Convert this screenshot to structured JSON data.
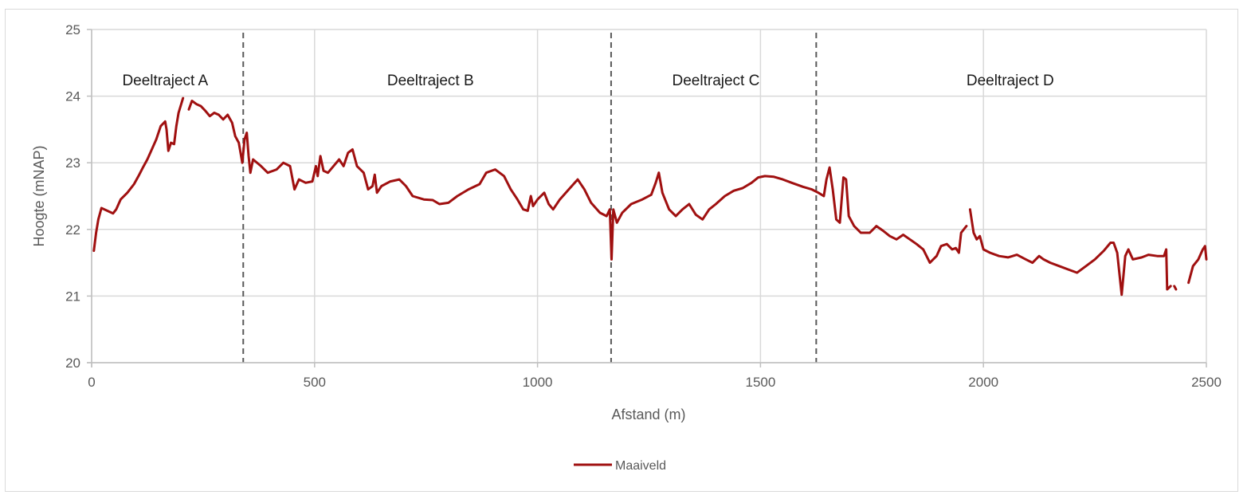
{
  "chart_data": {
    "type": "line",
    "title": "",
    "xlabel": "Afstand (m)",
    "ylabel": "Hoogte (mNAP)",
    "xlim": [
      0,
      2500
    ],
    "ylim": [
      20,
      25
    ],
    "x_ticks": [
      0,
      500,
      1000,
      1500,
      2000,
      2500
    ],
    "y_ticks": [
      20,
      21,
      22,
      23,
      24,
      25
    ],
    "grid": true,
    "legend_position": "bottom",
    "line_color": "#a01010",
    "section_dividers_m": [
      340,
      1165,
      1625
    ],
    "sections": [
      {
        "label": "Deeltraject A",
        "x_center": 165
      },
      {
        "label": "Deeltraject B",
        "x_center": 760
      },
      {
        "label": "Deeltraject C",
        "x_center": 1400
      },
      {
        "label": "Deeltraject D",
        "x_center": 2060
      }
    ],
    "series": [
      {
        "name": "Maaiveld",
        "segments": [
          [
            [
              5,
              21.68
            ],
            [
              10,
              21.95
            ],
            [
              15,
              22.15
            ],
            [
              22,
              22.32
            ],
            [
              35,
              22.28
            ],
            [
              48,
              22.24
            ],
            [
              55,
              22.3
            ],
            [
              65,
              22.45
            ],
            [
              80,
              22.55
            ],
            [
              95,
              22.68
            ],
            [
              105,
              22.8
            ],
            [
              115,
              22.93
            ],
            [
              125,
              23.05
            ],
            [
              135,
              23.2
            ],
            [
              145,
              23.35
            ],
            [
              155,
              23.55
            ],
            [
              165,
              23.62
            ],
            [
              168,
              23.5
            ],
            [
              172,
              23.18
            ],
            [
              178,
              23.3
            ],
            [
              185,
              23.28
            ],
            [
              190,
              23.55
            ],
            [
              195,
              23.75
            ],
            [
              205,
              23.97
            ]
          ],
          [
            [
              218,
              23.8
            ],
            [
              225,
              23.93
            ],
            [
              235,
              23.88
            ],
            [
              245,
              23.85
            ],
            [
              255,
              23.78
            ],
            [
              265,
              23.7
            ],
            [
              275,
              23.75
            ],
            [
              285,
              23.72
            ],
            [
              295,
              23.65
            ],
            [
              305,
              23.72
            ],
            [
              315,
              23.6
            ],
            [
              322,
              23.4
            ],
            [
              330,
              23.3
            ],
            [
              338,
              23.0
            ],
            [
              343,
              23.35
            ],
            [
              348,
              23.45
            ],
            [
              352,
              23.1
            ],
            [
              356,
              22.85
            ],
            [
              362,
              23.05
            ],
            [
              380,
              22.95
            ],
            [
              395,
              22.85
            ],
            [
              415,
              22.9
            ],
            [
              430,
              23.0
            ],
            [
              445,
              22.95
            ],
            [
              455,
              22.6
            ],
            [
              465,
              22.75
            ],
            [
              480,
              22.7
            ],
            [
              495,
              22.72
            ],
            [
              503,
              22.95
            ],
            [
              507,
              22.8
            ],
            [
              513,
              23.1
            ],
            [
              520,
              22.88
            ],
            [
              530,
              22.85
            ],
            [
              545,
              22.97
            ],
            [
              555,
              23.05
            ],
            [
              565,
              22.95
            ],
            [
              575,
              23.15
            ],
            [
              585,
              23.2
            ],
            [
              595,
              22.95
            ],
            [
              610,
              22.85
            ],
            [
              620,
              22.6
            ],
            [
              630,
              22.65
            ],
            [
              635,
              22.82
            ],
            [
              640,
              22.55
            ],
            [
              650,
              22.65
            ],
            [
              670,
              22.72
            ],
            [
              690,
              22.75
            ],
            [
              705,
              22.65
            ],
            [
              720,
              22.5
            ],
            [
              745,
              22.45
            ],
            [
              765,
              22.44
            ],
            [
              780,
              22.38
            ],
            [
              800,
              22.4
            ],
            [
              820,
              22.5
            ],
            [
              845,
              22.6
            ],
            [
              870,
              22.68
            ],
            [
              885,
              22.85
            ],
            [
              905,
              22.9
            ],
            [
              925,
              22.8
            ],
            [
              940,
              22.6
            ],
            [
              955,
              22.45
            ],
            [
              968,
              22.3
            ],
            [
              978,
              22.28
            ],
            [
              985,
              22.5
            ],
            [
              990,
              22.35
            ],
            [
              1000,
              22.45
            ],
            [
              1015,
              22.55
            ],
            [
              1025,
              22.38
            ],
            [
              1035,
              22.3
            ],
            [
              1050,
              22.45
            ],
            [
              1070,
              22.6
            ],
            [
              1090,
              22.75
            ],
            [
              1105,
              22.6
            ],
            [
              1120,
              22.4
            ],
            [
              1140,
              22.25
            ],
            [
              1155,
              22.2
            ],
            [
              1162,
              22.3
            ],
            [
              1166,
              21.55
            ],
            [
              1170,
              22.3
            ],
            [
              1178,
              22.1
            ],
            [
              1190,
              22.25
            ],
            [
              1210,
              22.38
            ],
            [
              1235,
              22.45
            ],
            [
              1255,
              22.52
            ],
            [
              1265,
              22.7
            ],
            [
              1272,
              22.85
            ],
            [
              1280,
              22.55
            ],
            [
              1295,
              22.3
            ],
            [
              1310,
              22.2
            ],
            [
              1325,
              22.3
            ],
            [
              1340,
              22.38
            ],
            [
              1355,
              22.22
            ],
            [
              1370,
              22.15
            ],
            [
              1385,
              22.3
            ],
            [
              1400,
              22.38
            ],
            [
              1420,
              22.5
            ],
            [
              1440,
              22.58
            ],
            [
              1460,
              22.62
            ],
            [
              1480,
              22.7
            ],
            [
              1495,
              22.78
            ],
            [
              1510,
              22.8
            ],
            [
              1530,
              22.79
            ],
            [
              1550,
              22.75
            ],
            [
              1570,
              22.7
            ],
            [
              1595,
              22.64
            ],
            [
              1615,
              22.6
            ],
            [
              1630,
              22.55
            ],
            [
              1642,
              22.5
            ],
            [
              1648,
              22.75
            ],
            [
              1655,
              22.93
            ],
            [
              1662,
              22.6
            ],
            [
              1670,
              22.15
            ],
            [
              1678,
              22.1
            ],
            [
              1686,
              22.78
            ],
            [
              1692,
              22.75
            ],
            [
              1698,
              22.2
            ],
            [
              1710,
              22.05
            ],
            [
              1725,
              21.95
            ],
            [
              1745,
              21.95
            ],
            [
              1760,
              22.05
            ],
            [
              1775,
              21.98
            ],
            [
              1790,
              21.9
            ],
            [
              1805,
              21.85
            ],
            [
              1820,
              21.92
            ],
            [
              1835,
              21.85
            ],
            [
              1850,
              21.78
            ],
            [
              1865,
              21.7
            ],
            [
              1880,
              21.5
            ],
            [
              1895,
              21.6
            ],
            [
              1905,
              21.75
            ],
            [
              1918,
              21.78
            ],
            [
              1930,
              21.7
            ],
            [
              1938,
              21.72
            ],
            [
              1945,
              21.65
            ],
            [
              1950,
              21.95
            ],
            [
              1962,
              22.05
            ]
          ],
          [
            [
              1970,
              22.3
            ],
            [
              1978,
              21.95
            ],
            [
              1985,
              21.85
            ],
            [
              1992,
              21.9
            ],
            [
              2000,
              21.7
            ],
            [
              2015,
              21.65
            ],
            [
              2035,
              21.6
            ],
            [
              2055,
              21.58
            ],
            [
              2075,
              21.62
            ],
            [
              2095,
              21.55
            ],
            [
              2110,
              21.5
            ],
            [
              2125,
              21.6
            ],
            [
              2135,
              21.55
            ],
            [
              2150,
              21.5
            ],
            [
              2170,
              21.45
            ],
            [
              2190,
              21.4
            ],
            [
              2210,
              21.35
            ],
            [
              2230,
              21.45
            ],
            [
              2250,
              21.55
            ],
            [
              2270,
              21.68
            ],
            [
              2285,
              21.8
            ],
            [
              2292,
              21.8
            ],
            [
              2300,
              21.65
            ],
            [
              2310,
              21.02
            ],
            [
              2318,
              21.6
            ],
            [
              2325,
              21.7
            ],
            [
              2335,
              21.55
            ],
            [
              2355,
              21.58
            ],
            [
              2370,
              21.62
            ],
            [
              2390,
              21.6
            ],
            [
              2405,
              21.6
            ],
            [
              2410,
              21.7
            ],
            [
              2412,
              21.1
            ],
            [
              2420,
              21.15
            ]
          ],
          [
            [
              2428,
              21.15
            ],
            [
              2432,
              21.1
            ]
          ],
          [
            [
              2460,
              21.2
            ],
            [
              2470,
              21.45
            ],
            [
              2482,
              21.55
            ],
            [
              2492,
              21.7
            ],
            [
              2497,
              21.75
            ],
            [
              2500,
              21.55
            ]
          ]
        ]
      }
    ]
  },
  "legend": {
    "items": [
      {
        "label": "Maaiveld",
        "color": "#a01010"
      }
    ]
  },
  "axes": {
    "x_title": "Afstand (m)",
    "y_title": "Hoogte (mNAP)",
    "x_tick_labels": [
      "0",
      "500",
      "1000",
      "1500",
      "2000",
      "2500"
    ],
    "y_tick_labels": [
      "20",
      "21",
      "22",
      "23",
      "24",
      "25"
    ]
  }
}
